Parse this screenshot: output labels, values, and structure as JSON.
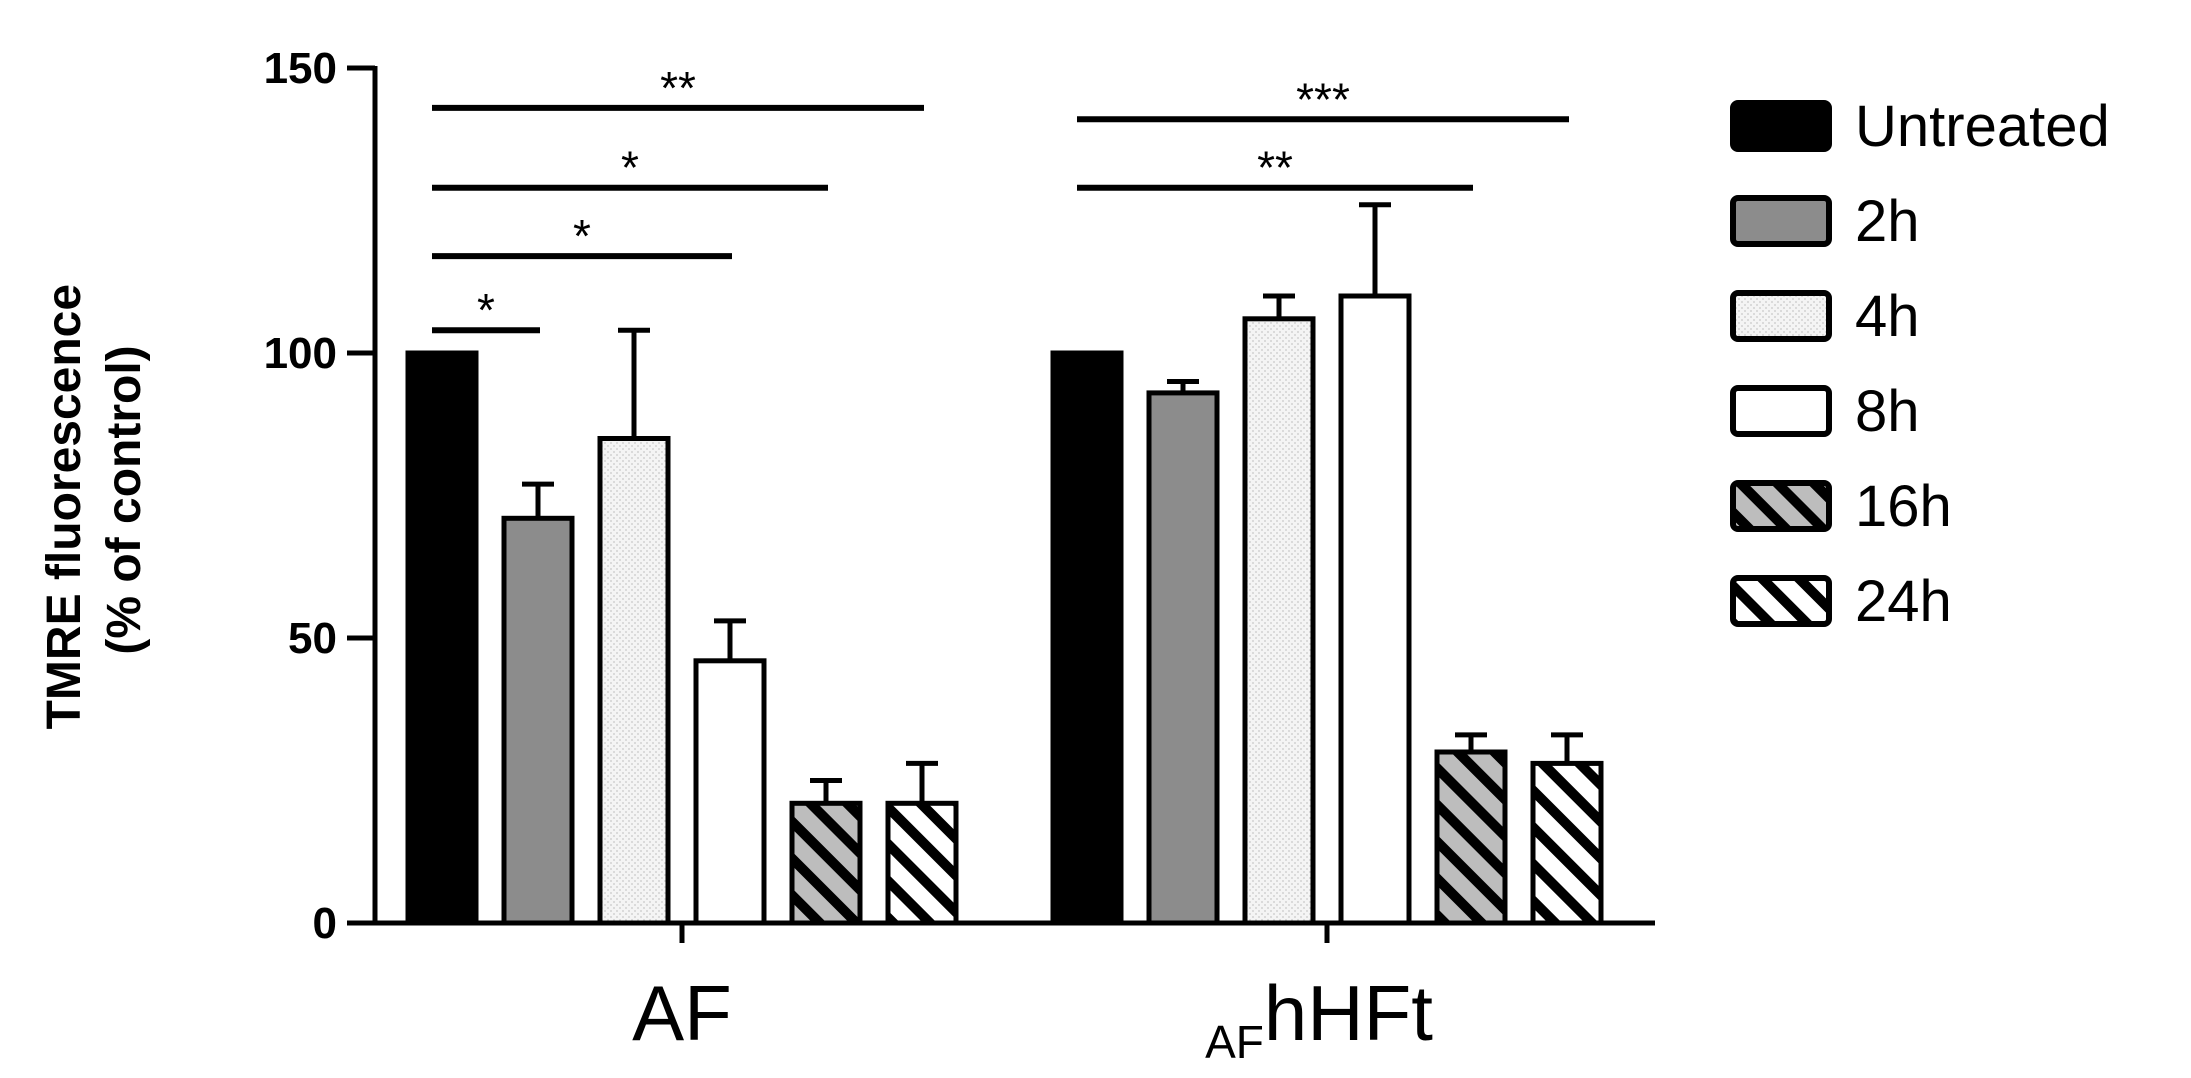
{
  "chart_data": {
    "type": "bar",
    "title": "",
    "ylabel_lines": [
      "TMRE fluorescence",
      "(% of control)"
    ],
    "xlabel": "",
    "ylim": [
      0,
      150
    ],
    "yticks": [
      "0",
      "50",
      "100",
      "150"
    ],
    "categories": [
      {
        "main": "AF",
        "prefix": ""
      },
      {
        "main": "hHFt",
        "prefix": "AF"
      }
    ],
    "series": [
      {
        "name": "Untreated",
        "values": [
          100,
          100
        ],
        "errors": [
          0,
          0
        ],
        "fill": "#000000",
        "pattern": "solid"
      },
      {
        "name": "2h",
        "values": [
          71,
          93
        ],
        "errors": [
          6,
          2
        ],
        "fill": "#8c8c8c",
        "pattern": "solid"
      },
      {
        "name": "4h",
        "values": [
          85,
          106
        ],
        "errors": [
          19,
          4
        ],
        "fill": "#f2f2f2",
        "pattern": "dotted"
      },
      {
        "name": "8h",
        "values": [
          46,
          110
        ],
        "errors": [
          7,
          16
        ],
        "fill": "#ffffff",
        "pattern": "solid"
      },
      {
        "name": "16h",
        "values": [
          21,
          30
        ],
        "errors": [
          4,
          3
        ],
        "fill": "#bdbdbd",
        "pattern": "hatch"
      },
      {
        "name": "24h",
        "values": [
          21,
          28
        ],
        "errors": [
          7,
          5
        ],
        "fill": "#ffffff",
        "pattern": "hatch"
      }
    ],
    "significance": [
      {
        "category": 0,
        "from_series": 0,
        "to_series": 1,
        "label": "*",
        "level": 104
      },
      {
        "category": 0,
        "from_series": 0,
        "to_series": 3,
        "label": "*",
        "level": 117
      },
      {
        "category": 0,
        "from_series": 0,
        "to_series": 4,
        "label": "*",
        "level": 129
      },
      {
        "category": 0,
        "from_series": 0,
        "to_series": 5,
        "label": "**",
        "level": 143
      },
      {
        "category": 1,
        "from_series": 0,
        "to_series": 4,
        "label": "**",
        "level": 129
      },
      {
        "category": 1,
        "from_series": 0,
        "to_series": 5,
        "label": "***",
        "level": 141
      }
    ],
    "legend_position": "right",
    "grid": false
  }
}
